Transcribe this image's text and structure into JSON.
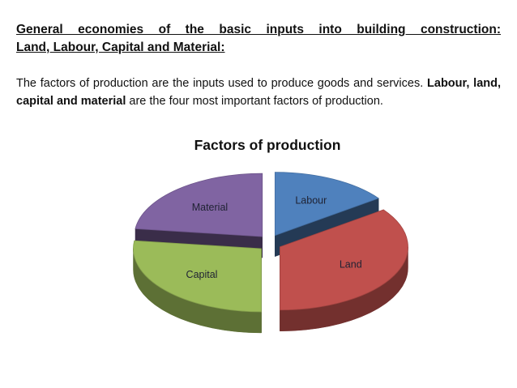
{
  "heading": {
    "line1": "General economies of the basic inputs into building construction:",
    "line2": "Land, Labour, Capital and Material:"
  },
  "paragraph": {
    "part1": "The factors of production are the inputs used to produce goods and services. ",
    "bold": "Labour, land, capital and material",
    "part2": " are the four most important factors of production."
  },
  "chart_data": {
    "type": "pie",
    "title": "Factors of production",
    "categories": [
      "Labour",
      "Land",
      "Capital",
      "Material"
    ],
    "values": [
      15,
      35,
      27,
      23
    ],
    "colors": [
      "#4f81bd",
      "#c0504d",
      "#9bbb59",
      "#8064a2"
    ],
    "style": "3d-exploded"
  }
}
